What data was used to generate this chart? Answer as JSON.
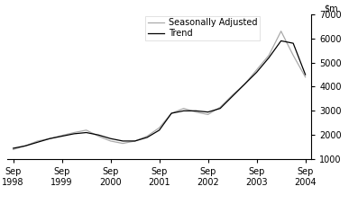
{
  "title": "",
  "ylim": [
    1000,
    7000
  ],
  "yticks": [
    1000,
    2000,
    3000,
    4000,
    5000,
    6000,
    7000
  ],
  "xtick_labels": [
    "Sep\n1998",
    "Sep\n1999",
    "Sep\n2000",
    "Sep\n2001",
    "Sep\n2002",
    "Sep\n2003",
    "Sep\n2004"
  ],
  "trend_color": "#000000",
  "seasonal_color": "#aaaaaa",
  "background_color": "#ffffff",
  "trend_x": [
    0,
    1,
    2,
    3,
    4,
    5,
    6,
    7,
    8,
    9,
    10,
    11,
    12,
    13,
    14,
    15,
    16,
    17,
    18,
    19,
    20,
    21,
    22,
    23,
    24
  ],
  "trend_y": [
    1450,
    1550,
    1700,
    1850,
    1950,
    2050,
    2100,
    2000,
    1850,
    1750,
    1750,
    1900,
    2200,
    2900,
    3000,
    3000,
    2950,
    3100,
    3600,
    4100,
    4600,
    5200,
    5900,
    5800,
    4500
  ],
  "seasonal_x": [
    0,
    1,
    2,
    3,
    4,
    5,
    6,
    7,
    8,
    9,
    10,
    11,
    12,
    13,
    14,
    15,
    16,
    17,
    18,
    19,
    20,
    21,
    22,
    23,
    24
  ],
  "seasonal_y": [
    1400,
    1550,
    1750,
    1850,
    1980,
    2100,
    2200,
    1950,
    1750,
    1650,
    1750,
    1950,
    2300,
    2900,
    3100,
    2950,
    2850,
    3150,
    3650,
    4100,
    4700,
    5300,
    6300,
    5300,
    4400
  ]
}
